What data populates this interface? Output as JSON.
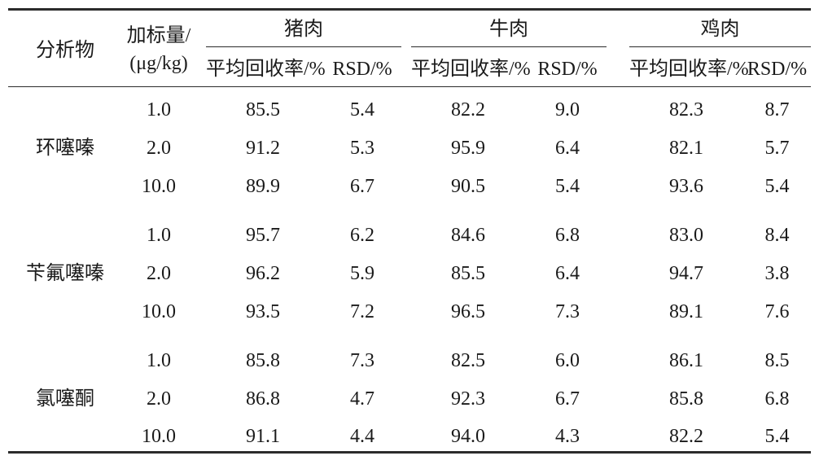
{
  "header": {
    "analyte": "分析物",
    "spike_line1": "加标量/",
    "spike_line2": "(μg/kg)",
    "groups": [
      "猪肉",
      "牛肉",
      "鸡肉"
    ],
    "recovery": "平均回收率/%",
    "rsd": "RSD/%"
  },
  "sections": [
    {
      "name": "环噻嗪",
      "rows": [
        [
          "1.0",
          "85.5",
          "5.4",
          "82.2",
          "9.0",
          "82.3",
          "8.7"
        ],
        [
          "2.0",
          "91.2",
          "5.3",
          "95.9",
          "6.4",
          "82.1",
          "5.7"
        ],
        [
          "10.0",
          "89.9",
          "6.7",
          "90.5",
          "5.4",
          "93.6",
          "5.4"
        ]
      ]
    },
    {
      "name": "苄氟噻嗪",
      "rows": [
        [
          "1.0",
          "95.7",
          "6.2",
          "84.6",
          "6.8",
          "83.0",
          "8.4"
        ],
        [
          "2.0",
          "96.2",
          "5.9",
          "85.5",
          "6.4",
          "94.7",
          "3.8"
        ],
        [
          "10.0",
          "93.5",
          "7.2",
          "96.5",
          "7.3",
          "89.1",
          "7.6"
        ]
      ]
    },
    {
      "name": "氯噻酮",
      "rows": [
        [
          "1.0",
          "85.8",
          "7.3",
          "82.5",
          "6.0",
          "86.1",
          "8.5"
        ],
        [
          "2.0",
          "86.8",
          "4.7",
          "92.3",
          "6.7",
          "85.8",
          "6.8"
        ],
        [
          "10.0",
          "91.1",
          "4.4",
          "94.0",
          "4.3",
          "82.2",
          "5.4"
        ]
      ]
    }
  ]
}
